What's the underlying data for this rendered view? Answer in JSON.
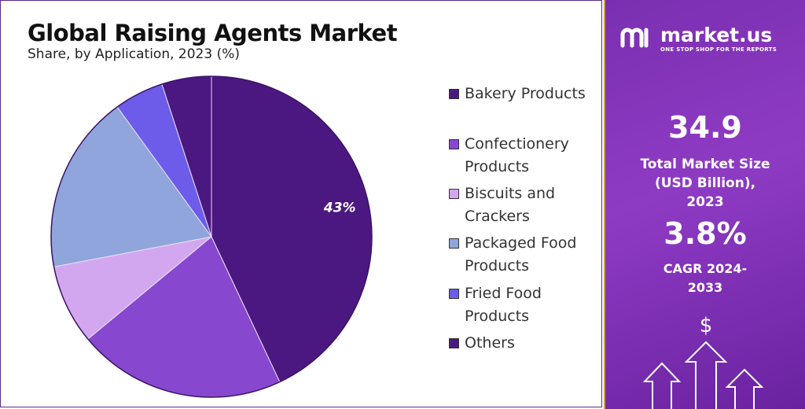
{
  "chart_data": {
    "type": "pie",
    "title": "Global Raising Agents Market",
    "subtitle": "Share, by Application, 2023 (%)",
    "categories": [
      "Bakery Products",
      "Confectionery Products",
      "Biscuits and Crackers",
      "Packaged Food Products",
      "Fried Food Products",
      "Others"
    ],
    "values": [
      43,
      21,
      8,
      18,
      5,
      5
    ],
    "value_labels": [
      "43%",
      null,
      null,
      null,
      null,
      null
    ],
    "colors": [
      "#4b1780",
      "#8748cf",
      "#d3a7ef",
      "#8fa5dc",
      "#6c5ce9",
      "#4b1780"
    ],
    "legend": "right"
  },
  "panel": {
    "brand": "market.us",
    "tagline": "ONE STOP SHOP FOR THE REPORTS",
    "market_size": "34.9",
    "market_size_label": "Total Market Size (USD Billion), 2023",
    "cagr": "3.8%",
    "cagr_label": "CAGR 2024-2033",
    "icon": "$"
  }
}
